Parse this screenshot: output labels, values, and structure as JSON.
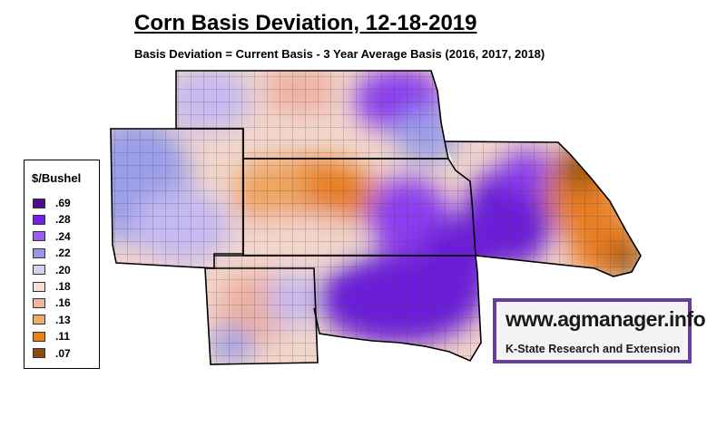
{
  "title": "Corn Basis Deviation, 12-18-2019",
  "subtitle": "Basis Deviation = Current Basis - 3 Year Average Basis (2016, 2017, 2018)",
  "legend": {
    "title": "$/Bushel",
    "items": [
      {
        "label": ".69",
        "color": "#4b0b8c"
      },
      {
        "label": ".28",
        "color": "#7a1cf0"
      },
      {
        "label": ".24",
        "color": "#a05cf0"
      },
      {
        "label": ".22",
        "color": "#9a95ea"
      },
      {
        "label": ".20",
        "color": "#d9cef4"
      },
      {
        "label": ".18",
        "color": "#f4dfd2"
      },
      {
        "label": ".16",
        "color": "#f0b3a3"
      },
      {
        "label": ".13",
        "color": "#f2a866"
      },
      {
        "label": ".11",
        "color": "#ec7f18"
      },
      {
        "label": ".07",
        "color": "#8e4a0a"
      }
    ]
  },
  "logo": {
    "url": "www.agmanager.info",
    "org": "K-State Research and Extension"
  },
  "map_colors": {
    "purple_deep": "#6a1ad8",
    "purple": "#8b3cf0",
    "lavender": "#c5b9f2",
    "periwinkle": "#9b9ee8",
    "blush": "#f2d6cc",
    "salmon": "#eeb0a0",
    "light_orange": "#f0a45e",
    "orange": "#e87e22",
    "brown": "#9a520f"
  }
}
